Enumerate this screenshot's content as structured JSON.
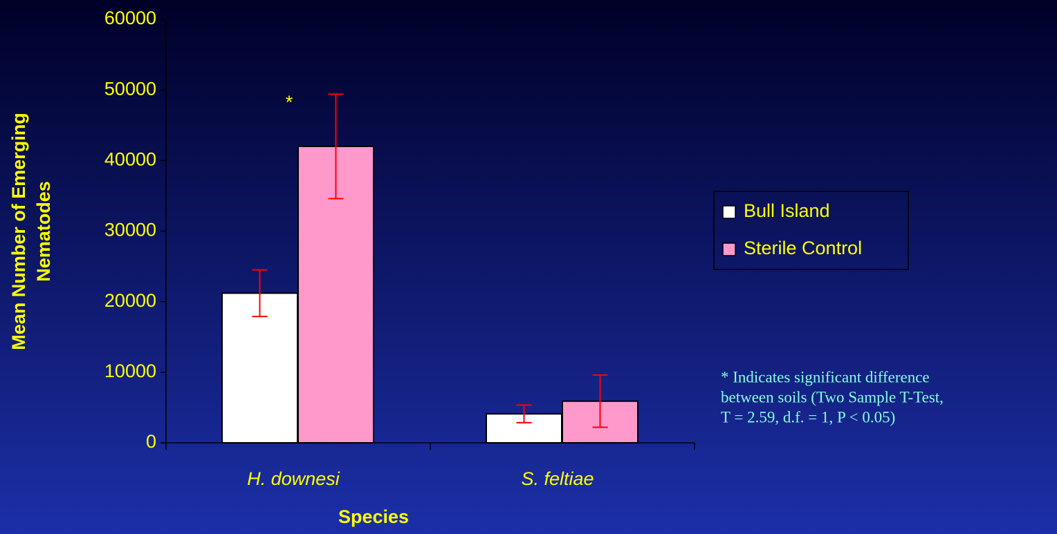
{
  "chart_data": {
    "type": "bar",
    "x_label": "Species",
    "y_label": [
      "Mean Number of Emerging",
      "Nematodes"
    ],
    "categories": [
      "H. downesi",
      "S. feltiae"
    ],
    "series": [
      {
        "name": "Bull Island",
        "color": "#ffffff",
        "values": [
          21200,
          4100
        ],
        "errors": [
          3300,
          1250
        ]
      },
      {
        "name": "Sterile Control",
        "color": "#ff99cc",
        "values": [
          42000,
          5900
        ],
        "errors": [
          7400,
          3700
        ]
      }
    ],
    "error_color": "#ff0000",
    "ylim": [
      0,
      60000
    ],
    "yticks": [
      0,
      10000,
      20000,
      30000,
      40000,
      50000,
      60000
    ],
    "annotation": "*",
    "note": [
      "* Indicates significant difference",
      "between soils (Two Sample T-Test,",
      "T = 2.59, d.f. = 1, P < 0.05)"
    ],
    "legend": "right"
  }
}
